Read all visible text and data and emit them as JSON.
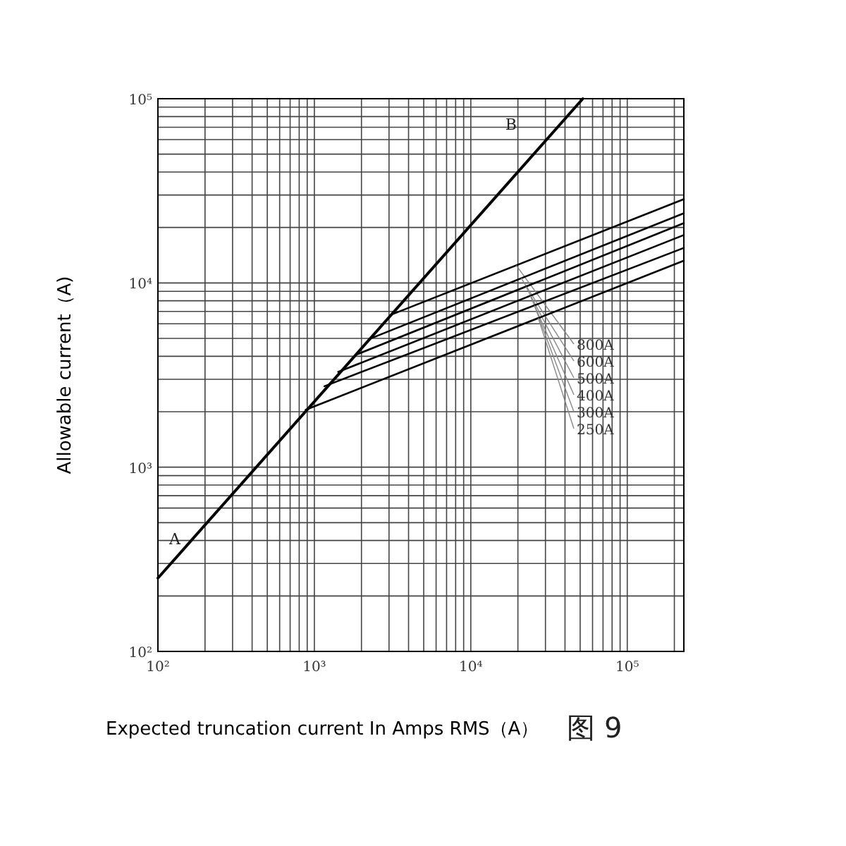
{
  "chart_data": {
    "type": "line",
    "xlabel": "Expected truncation current In Amps RMS（A）",
    "ylabel": "Allowable current（A)",
    "log": "xy",
    "grid": true,
    "legend": false,
    "line_style": "solid",
    "xlim": [
      100,
      230000
    ],
    "ylim": [
      100,
      100000
    ],
    "xticks": [
      {
        "value": 100,
        "label": "10²"
      },
      {
        "value": 1000,
        "label": "10³"
      },
      {
        "value": 10000,
        "label": "10⁴"
      },
      {
        "value": 100000,
        "label": "10⁵"
      }
    ],
    "yticks": [
      {
        "value": 100,
        "label": "10²"
      },
      {
        "value": 1000,
        "label": "10³"
      },
      {
        "value": 10000,
        "label": "10⁴"
      },
      {
        "value": 100000,
        "label": "10⁵"
      }
    ],
    "series": [
      {
        "color": "#000000",
        "x": [
          100,
          52000
        ],
        "values": [
          250,
          100000
        ]
      },
      {
        "name": "800A",
        "color": "#000000",
        "x": [
          3200,
          230000
        ],
        "values": [
          6800,
          28500
        ]
      },
      {
        "name": "600A",
        "color": "#000000",
        "x": [
          2230,
          230000
        ],
        "values": [
          4950,
          23900
        ]
      },
      {
        "name": "500A",
        "color": "#000000",
        "x": [
          1880,
          230000
        ],
        "values": [
          4100,
          21100
        ]
      },
      {
        "name": "400A",
        "color": "#000000",
        "x": [
          1420,
          230000
        ],
        "values": [
          3290,
          18200
        ]
      },
      {
        "name": "300A",
        "color": "#000000",
        "x": [
          1160,
          230000
        ],
        "values": [
          2750,
          15500
        ]
      },
      {
        "name": "250A",
        "color": "#000000",
        "x": [
          880,
          230000
        ],
        "values": [
          2050,
          13200
        ]
      }
    ],
    "annotations": [
      "A",
      "B",
      "图 9"
    ]
  }
}
